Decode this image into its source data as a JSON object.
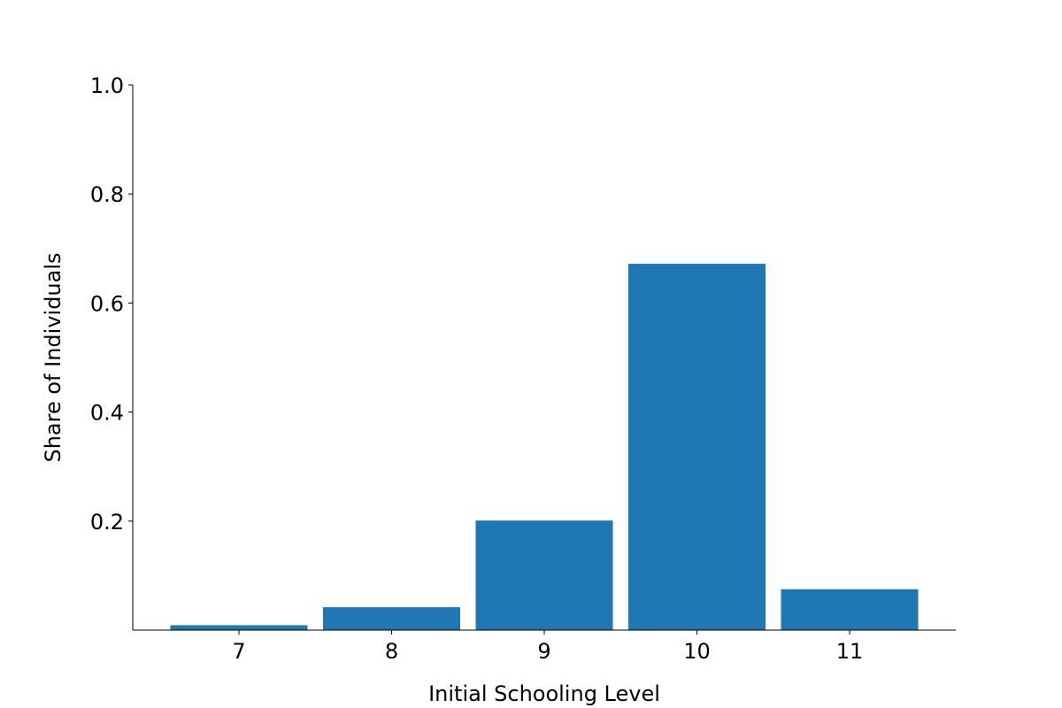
{
  "chart_data": {
    "type": "bar",
    "categories": [
      "7",
      "8",
      "9",
      "10",
      "11"
    ],
    "values": [
      0.009,
      0.042,
      0.201,
      0.672,
      0.075
    ],
    "xlabel": "Initial Schooling Level",
    "ylabel": "Share of Individuals",
    "ylim": [
      0,
      1.0
    ],
    "yticks": [
      "0.2",
      "0.4",
      "0.6",
      "0.8",
      "1.0"
    ],
    "ytick_values": [
      0.2,
      0.4,
      0.6,
      0.8,
      1.0
    ],
    "grid": false,
    "bar_color": "#1f77b4",
    "spines": [
      "left",
      "bottom"
    ]
  }
}
